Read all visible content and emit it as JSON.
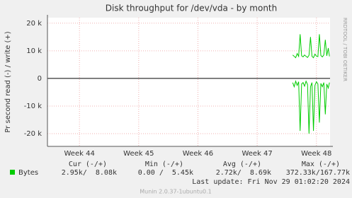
{
  "chart_data": {
    "type": "line",
    "title": "Disk throughput for /dev/vda - by month",
    "y_label": "Pr second read (-) / write (+)",
    "side_label": "RRDTOOL / TOBI OETIKER",
    "x": [
      47.6,
      47.625,
      47.65,
      47.675,
      47.7,
      47.725,
      47.75,
      47.775,
      47.8,
      47.825,
      47.85,
      47.875,
      47.9,
      47.925,
      47.95,
      47.975,
      48.0,
      48.025,
      48.05,
      48.075,
      48.1,
      48.125,
      48.15,
      48.175,
      48.2,
      48.22
    ],
    "series": [
      {
        "name": "Bytes",
        "color": "#00cc00",
        "values": [
          8500,
          8000,
          7500,
          9000,
          8000,
          16000,
          8200,
          7800,
          8500,
          8000,
          7600,
          8400,
          15000,
          8000,
          7500,
          8800,
          8100,
          7900,
          16000,
          8300,
          7800,
          8500,
          14000,
          8200,
          11000,
          8000
        ],
        "negative_values": [
          -1500,
          -3000,
          -1000,
          -2500,
          -1200,
          -19000,
          -2000,
          -1500,
          -2800,
          -1000,
          -2200,
          -20000,
          -3000,
          -1500,
          -19000,
          -2500,
          -1200,
          -2000,
          -16000,
          -1800,
          -3000,
          -1500,
          -13000,
          -2000,
          -3500,
          -1500
        ]
      }
    ],
    "xlim": [
      43.46,
      48.23
    ],
    "xticks": [
      {
        "value": 44,
        "label": "Week 44"
      },
      {
        "value": 45,
        "label": "Week 45"
      },
      {
        "value": 46,
        "label": "Week 46"
      },
      {
        "value": 47,
        "label": "Week 47"
      },
      {
        "value": 48,
        "label": "Week 48"
      }
    ],
    "ylim": [
      -24600,
      22000
    ],
    "yticks": [
      {
        "value": -20000,
        "label": "-20 k"
      },
      {
        "value": -10000,
        "label": "-10 k"
      },
      0,
      {
        "value": 10000,
        "label": "10 k"
      },
      {
        "value": 20000,
        "label": "20 k"
      }
    ],
    "grid": true,
    "legend": {
      "headers": [
        "Cur (-/+)",
        "Min (-/+)",
        "Avg (-/+)",
        "Max (-/+)"
      ],
      "row": [
        "2.95k/  8.08k",
        "0.00 /  5.45k",
        "2.72k/  8.69k",
        "372.33k/167.77k"
      ]
    },
    "last_update": "Last update: Fri Nov 29 01:02:20 2024",
    "footer": "Munin 2.0.37-1ubuntu0.1"
  }
}
